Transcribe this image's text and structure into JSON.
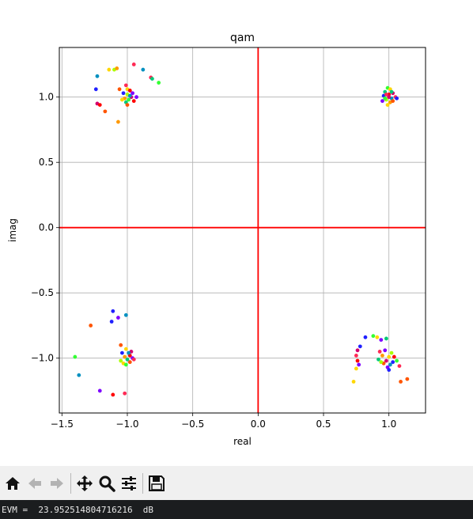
{
  "window": {
    "status_text": "EVM =  23.952514804716216  dB"
  },
  "toolbar": {
    "buttons": [
      {
        "name": "home",
        "icon": "home-icon",
        "enabled": true
      },
      {
        "name": "back",
        "icon": "back-arrow-icon",
        "enabled": false
      },
      {
        "name": "forward",
        "icon": "forward-arrow-icon",
        "enabled": false
      },
      {
        "name": "pan",
        "icon": "pan-move-icon",
        "enabled": true
      },
      {
        "name": "zoom",
        "icon": "zoom-magnifier-icon",
        "enabled": true
      },
      {
        "name": "configure",
        "icon": "configure-sliders-icon",
        "enabled": true
      },
      {
        "name": "save",
        "icon": "save-disk-icon",
        "enabled": true
      }
    ]
  },
  "chart_data": {
    "type": "scatter",
    "title": "qam",
    "xlabel": "real",
    "ylabel": "imag",
    "xlim": [
      -1.52,
      1.28
    ],
    "ylim": [
      -1.42,
      1.38
    ],
    "xticks": [
      -1.5,
      -1.0,
      -0.5,
      0.0,
      0.5,
      1.0
    ],
    "xtick_labels": [
      "−1.5",
      "−1.0",
      "−0.5",
      "0.0",
      "0.5",
      "1.0"
    ],
    "yticks": [
      1.0,
      0.5,
      0.0,
      -0.5,
      -1.0
    ],
    "ytick_labels": [
      "1.0",
      "0.5",
      "0.0",
      "−0.5",
      "−1.0"
    ],
    "grid": true,
    "reference_lines": {
      "color": "#ff0000",
      "vertical_x": 0.0,
      "horizontal_y": 0.0
    },
    "colors": [
      "#ff0000",
      "#ff2a55",
      "#d4006e",
      "#7f00ff",
      "#2020ff",
      "#0090c0",
      "#00c878",
      "#33ff33",
      "#aaff00",
      "#ffd700",
      "#ff9900",
      "#ff5500"
    ],
    "points": [
      {
        "x": -1.23,
        "y": 1.16,
        "c": 5
      },
      {
        "x": -1.14,
        "y": 1.21,
        "c": 9
      },
      {
        "x": -1.1,
        "y": 1.21,
        "c": 8
      },
      {
        "x": -1.08,
        "y": 1.22,
        "c": 10
      },
      {
        "x": -0.95,
        "y": 1.25,
        "c": 1
      },
      {
        "x": -0.88,
        "y": 1.21,
        "c": 5
      },
      {
        "x": -0.82,
        "y": 1.15,
        "c": 1
      },
      {
        "x": -0.81,
        "y": 1.14,
        "c": 6
      },
      {
        "x": -0.76,
        "y": 1.11,
        "c": 7
      },
      {
        "x": -1.24,
        "y": 1.06,
        "c": 4
      },
      {
        "x": -1.23,
        "y": 0.95,
        "c": 2
      },
      {
        "x": -1.21,
        "y": 0.94,
        "c": 0
      },
      {
        "x": -1.17,
        "y": 0.89,
        "c": 11
      },
      {
        "x": -1.07,
        "y": 0.81,
        "c": 10
      },
      {
        "x": -1.06,
        "y": 1.06,
        "c": 11
      },
      {
        "x": -1.01,
        "y": 1.09,
        "c": 1
      },
      {
        "x": -1.0,
        "y": 1.06,
        "c": 9
      },
      {
        "x": -0.98,
        "y": 1.05,
        "c": 0
      },
      {
        "x": -0.96,
        "y": 1.03,
        "c": 3
      },
      {
        "x": -1.03,
        "y": 1.03,
        "c": 4
      },
      {
        "x": -1.0,
        "y": 1.02,
        "c": 8
      },
      {
        "x": -0.97,
        "y": 1.0,
        "c": 2
      },
      {
        "x": -1.02,
        "y": 0.99,
        "c": 10
      },
      {
        "x": -0.99,
        "y": 0.98,
        "c": 7
      },
      {
        "x": -1.01,
        "y": 0.96,
        "c": 6
      },
      {
        "x": -0.95,
        "y": 0.97,
        "c": 0
      },
      {
        "x": -1.04,
        "y": 0.98,
        "c": 9
      },
      {
        "x": -0.93,
        "y": 1.0,
        "c": 3
      },
      {
        "x": -0.98,
        "y": 1.01,
        "c": 5
      },
      {
        "x": -1.0,
        "y": 0.94,
        "c": 11
      },
      {
        "x": 0.99,
        "y": 1.07,
        "c": 7
      },
      {
        "x": 1.01,
        "y": 1.06,
        "c": 9
      },
      {
        "x": 0.97,
        "y": 1.04,
        "c": 6
      },
      {
        "x": 1.03,
        "y": 1.03,
        "c": 2
      },
      {
        "x": 0.96,
        "y": 1.01,
        "c": 4
      },
      {
        "x": 1.0,
        "y": 1.02,
        "c": 0
      },
      {
        "x": 1.02,
        "y": 0.99,
        "c": 5
      },
      {
        "x": 0.98,
        "y": 0.98,
        "c": 8
      },
      {
        "x": 1.05,
        "y": 1.0,
        "c": 1
      },
      {
        "x": 0.95,
        "y": 0.97,
        "c": 3
      },
      {
        "x": 1.01,
        "y": 0.96,
        "c": 10
      },
      {
        "x": 0.99,
        "y": 0.94,
        "c": 9
      },
      {
        "x": 1.03,
        "y": 0.97,
        "c": 11
      },
      {
        "x": 0.97,
        "y": 0.99,
        "c": 7
      },
      {
        "x": 1.0,
        "y": 1.0,
        "c": 2
      },
      {
        "x": 1.06,
        "y": 0.99,
        "c": 4
      },
      {
        "x": 0.98,
        "y": 1.02,
        "c": 1
      },
      {
        "x": 1.02,
        "y": 1.04,
        "c": 6
      },
      {
        "x": -1.11,
        "y": -0.64,
        "c": 4
      },
      {
        "x": -1.01,
        "y": -0.67,
        "c": 5
      },
      {
        "x": -1.07,
        "y": -0.69,
        "c": 3
      },
      {
        "x": -1.12,
        "y": -0.72,
        "c": 4
      },
      {
        "x": -1.28,
        "y": -0.75,
        "c": 11
      },
      {
        "x": -1.4,
        "y": -0.99,
        "c": 7
      },
      {
        "x": -1.37,
        "y": -1.13,
        "c": 5
      },
      {
        "x": -1.21,
        "y": -1.25,
        "c": 3
      },
      {
        "x": -1.11,
        "y": -1.28,
        "c": 0
      },
      {
        "x": -1.02,
        "y": -1.27,
        "c": 1
      },
      {
        "x": -1.05,
        "y": -0.9,
        "c": 11
      },
      {
        "x": -1.01,
        "y": -0.93,
        "c": 9
      },
      {
        "x": -0.97,
        "y": -0.95,
        "c": 2
      },
      {
        "x": -1.04,
        "y": -0.96,
        "c": 4
      },
      {
        "x": -0.98,
        "y": -0.98,
        "c": 0
      },
      {
        "x": -1.02,
        "y": -0.99,
        "c": 10
      },
      {
        "x": -0.96,
        "y": -1.0,
        "c": 3
      },
      {
        "x": -1.05,
        "y": -1.02,
        "c": 8
      },
      {
        "x": -1.0,
        "y": -1.01,
        "c": 6
      },
      {
        "x": -0.98,
        "y": -1.03,
        "c": 11
      },
      {
        "x": -1.03,
        "y": -1.04,
        "c": 9
      },
      {
        "x": -0.95,
        "y": -1.01,
        "c": 1
      },
      {
        "x": -1.01,
        "y": -1.05,
        "c": 7
      },
      {
        "x": -0.99,
        "y": -0.96,
        "c": 5
      },
      {
        "x": 0.82,
        "y": -0.84,
        "c": 4
      },
      {
        "x": 0.88,
        "y": -0.83,
        "c": 7
      },
      {
        "x": 0.91,
        "y": -0.84,
        "c": 9
      },
      {
        "x": 0.94,
        "y": -0.86,
        "c": 3
      },
      {
        "x": 0.98,
        "y": -0.85,
        "c": 6
      },
      {
        "x": 0.78,
        "y": -0.91,
        "c": 4
      },
      {
        "x": 0.76,
        "y": -0.94,
        "c": 2
      },
      {
        "x": 0.75,
        "y": -0.98,
        "c": 1
      },
      {
        "x": 0.76,
        "y": -1.02,
        "c": 0
      },
      {
        "x": 0.77,
        "y": -1.05,
        "c": 3
      },
      {
        "x": 0.75,
        "y": -1.08,
        "c": 9
      },
      {
        "x": 0.73,
        "y": -1.18,
        "c": 9
      },
      {
        "x": 1.09,
        "y": -1.18,
        "c": 11
      },
      {
        "x": 1.14,
        "y": -1.16,
        "c": 11
      },
      {
        "x": 0.93,
        "y": -0.95,
        "c": 1
      },
      {
        "x": 0.97,
        "y": -0.94,
        "c": 3
      },
      {
        "x": 1.02,
        "y": -0.96,
        "c": 8
      },
      {
        "x": 0.95,
        "y": -0.98,
        "c": 10
      },
      {
        "x": 1.0,
        "y": -0.99,
        "c": 9
      },
      {
        "x": 1.04,
        "y": -0.99,
        "c": 0
      },
      {
        "x": 0.92,
        "y": -1.01,
        "c": 6
      },
      {
        "x": 0.98,
        "y": -1.02,
        "c": 2
      },
      {
        "x": 1.03,
        "y": -1.03,
        "c": 4
      },
      {
        "x": 0.96,
        "y": -1.04,
        "c": 11
      },
      {
        "x": 1.01,
        "y": -1.05,
        "c": 5
      },
      {
        "x": 0.99,
        "y": -1.07,
        "c": 3
      },
      {
        "x": 1.06,
        "y": -1.02,
        "c": 7
      },
      {
        "x": 0.94,
        "y": -1.03,
        "c": 8
      },
      {
        "x": 1.0,
        "y": -1.09,
        "c": 4
      },
      {
        "x": 1.08,
        "y": -1.06,
        "c": 1
      }
    ]
  }
}
